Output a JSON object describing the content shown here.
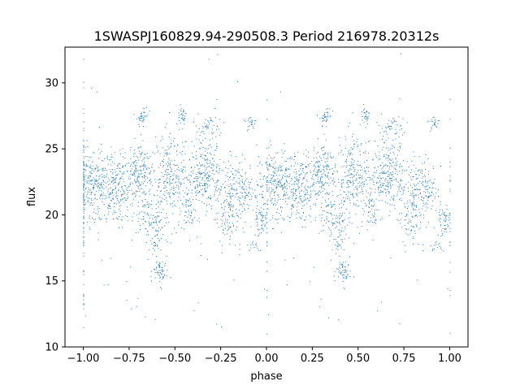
{
  "chart_data": {
    "type": "scatter",
    "title": "1SWASPJ160829.94-290508.3 Period 216978.20312s",
    "xlabel": "phase",
    "ylabel": "flux",
    "xlim": [
      -1.1,
      1.1
    ],
    "ylim": [
      10,
      32.7
    ],
    "xticks": [
      -1.0,
      -0.75,
      -0.5,
      -0.25,
      0.0,
      0.25,
      0.5,
      0.75,
      1.0
    ],
    "xtick_labels": [
      "−1.00",
      "−0.75",
      "−0.50",
      "−0.25",
      "0.00",
      "0.25",
      "0.50",
      "0.75",
      "1.00"
    ],
    "yticks": [
      10,
      15,
      20,
      25,
      30
    ],
    "ytick_labels": [
      "10",
      "15",
      "20",
      "25",
      "30"
    ],
    "grid": false,
    "marker_color": "#1f77b4",
    "mirrored_about_phase_zero": true,
    "clusters": [
      {
        "x": 0.05,
        "y": 22.4,
        "sx": 0.05,
        "sy": 1.3,
        "n": 260
      },
      {
        "x": 0.17,
        "y": 22.0,
        "sx": 0.04,
        "sy": 1.3,
        "n": 180
      },
      {
        "x": 0.29,
        "y": 23.2,
        "sx": 0.04,
        "sy": 1.1,
        "n": 200
      },
      {
        "x": 0.32,
        "y": 27.4,
        "sx": 0.015,
        "sy": 0.4,
        "n": 40
      },
      {
        "x": 0.35,
        "y": 19.8,
        "sx": 0.03,
        "sy": 0.8,
        "n": 60
      },
      {
        "x": 0.4,
        "y": 19.3,
        "sx": 0.02,
        "sy": 0.8,
        "n": 40
      },
      {
        "x": 0.39,
        "y": 17.9,
        "sx": 0.01,
        "sy": 0.4,
        "n": 20
      },
      {
        "x": 0.42,
        "y": 15.7,
        "sx": 0.02,
        "sy": 0.5,
        "n": 60
      },
      {
        "x": 0.47,
        "y": 22.8,
        "sx": 0.045,
        "sy": 1.4,
        "n": 240
      },
      {
        "x": 0.54,
        "y": 27.6,
        "sx": 0.012,
        "sy": 0.4,
        "n": 30
      },
      {
        "x": 0.57,
        "y": 20.6,
        "sx": 0.02,
        "sy": 1.0,
        "n": 50
      },
      {
        "x": 0.66,
        "y": 23.0,
        "sx": 0.05,
        "sy": 1.2,
        "n": 260
      },
      {
        "x": 0.69,
        "y": 26.5,
        "sx": 0.03,
        "sy": 0.7,
        "n": 50
      },
      {
        "x": 0.78,
        "y": 19.8,
        "sx": 0.03,
        "sy": 1.2,
        "n": 90
      },
      {
        "x": 0.85,
        "y": 22.0,
        "sx": 0.04,
        "sy": 1.0,
        "n": 160
      },
      {
        "x": 0.91,
        "y": 27.1,
        "sx": 0.02,
        "sy": 0.3,
        "n": 25
      },
      {
        "x": 0.93,
        "y": 17.6,
        "sx": 0.02,
        "sy": 0.2,
        "n": 15
      },
      {
        "x": 0.97,
        "y": 19.6,
        "sx": 0.02,
        "sy": 0.6,
        "n": 60
      },
      {
        "x": 0.0,
        "y": 20.0,
        "sx": 0.9,
        "sy": 4.5,
        "n": 150
      }
    ]
  }
}
